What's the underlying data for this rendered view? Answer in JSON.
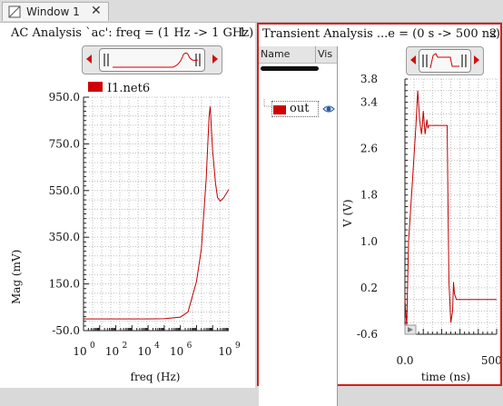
{
  "tab": {
    "label": "Window 1",
    "close_glyph": "✕",
    "icon": "window-icon"
  },
  "left_panel": {
    "title": "AC Analysis `ac': freq = (1 Hz -> 1 GHz)",
    "number": "1",
    "legend": {
      "label": "I1.net6",
      "color": "#d00000"
    },
    "y_axis": {
      "label": "Mag (mV)",
      "ticks": [
        "950.0",
        "750.0",
        "550.0",
        "350.0",
        "150.0",
        "-50.0"
      ]
    },
    "x_axis": {
      "label": "freq (Hz)",
      "ticks": [
        {
          "base": "10",
          "exp": "0"
        },
        {
          "base": "10",
          "exp": "2"
        },
        {
          "base": "10",
          "exp": "4"
        },
        {
          "base": "10",
          "exp": "6"
        },
        {
          "base": "10",
          "exp": "9"
        }
      ]
    }
  },
  "right_panel": {
    "title": "Transient Analysis ...e = (0 s -> 500 ns)",
    "number": "2",
    "tree": {
      "col_name": "Name",
      "col_vis": "Vis",
      "item_label": "out",
      "item_color": "#d00000"
    },
    "y_axis": {
      "label": "V (V)",
      "ticks": [
        "3.8",
        "3.4",
        "2.6",
        "1.8",
        "1.0",
        "0.2",
        "-0.6"
      ]
    },
    "x_axis": {
      "label": "time (ns)",
      "ticks": [
        "0.0",
        "500.0"
      ]
    }
  },
  "chart_data": [
    {
      "type": "line",
      "title": "AC Analysis `ac': freq = (1 Hz -> 1 GHz)",
      "xlabel": "freq (Hz)",
      "ylabel": "Mag (mV)",
      "x_scale": "log",
      "xlim": [
        1,
        1000000000
      ],
      "ylim": [
        -50,
        950
      ],
      "grid": true,
      "legend_position": "top-left",
      "series": [
        {
          "name": "I1.net6",
          "color": "#d00000",
          "x": [
            1,
            100,
            10000,
            100000,
            1000000,
            3000000,
            10000000,
            20000000,
            40000000,
            60000000,
            70000000,
            100000000,
            150000000,
            200000000,
            300000000,
            500000000,
            1000000000
          ],
          "y": [
            0,
            0,
            0,
            1,
            8,
            30,
            160,
            300,
            600,
            870,
            910,
            720,
            580,
            520,
            505,
            520,
            555
          ]
        }
      ]
    },
    {
      "type": "line",
      "title": "Transient Analysis ...e = (0 s -> 500 ns)",
      "xlabel": "time (ns)",
      "ylabel": "V (V)",
      "xlim": [
        0,
        500
      ],
      "ylim": [
        -0.6,
        3.8
      ],
      "grid": true,
      "series": [
        {
          "name": "out",
          "color": "#d00000",
          "x": [
            0,
            10,
            15,
            20,
            40,
            60,
            70,
            80,
            90,
            95,
            100,
            110,
            120,
            125,
            130,
            140,
            150,
            160,
            180,
            200,
            230,
            235,
            240,
            250,
            260,
            265,
            270,
            280,
            300,
            400,
            500
          ],
          "y": [
            0.0,
            -0.45,
            0.3,
            1.0,
            2.0,
            3.0,
            3.6,
            3.1,
            2.85,
            3.0,
            3.25,
            2.85,
            3.1,
            2.95,
            3.0,
            3.0,
            3.0,
            3.0,
            3.0,
            3.0,
            3.0,
            1.5,
            0.3,
            -0.4,
            -0.2,
            0.3,
            0.1,
            0.0,
            0.0,
            0.0,
            0.0
          ]
        }
      ]
    }
  ]
}
